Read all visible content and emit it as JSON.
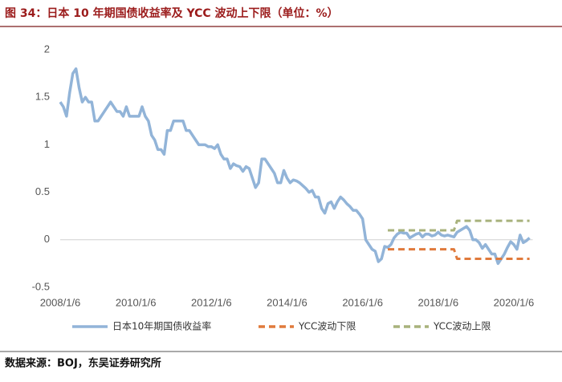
{
  "chart_data": {
    "type": "line",
    "title": "图 34：日本 10 年期国债收益率及 YCC 波动上下限（单位：%）",
    "source": "数据来源：BOJ，东吴证券研究所",
    "x": [
      "2008/1/6",
      "2008/2/6",
      "2008/3/6",
      "2008/4/6",
      "2008/5/6",
      "2008/6/6",
      "2008/7/6",
      "2008/8/6",
      "2008/9/6",
      "2008/10/6",
      "2008/11/6",
      "2008/12/6",
      "2009/1/6",
      "2009/2/6",
      "2009/3/6",
      "2009/4/6",
      "2009/5/6",
      "2009/6/6",
      "2009/7/6",
      "2009/8/6",
      "2009/9/6",
      "2009/10/6",
      "2009/11/6",
      "2009/12/6",
      "2010/1/6",
      "2010/2/6",
      "2010/3/6",
      "2010/4/6",
      "2010/5/6",
      "2010/6/6",
      "2010/7/6",
      "2010/8/6",
      "2010/9/6",
      "2010/10/6",
      "2010/11/6",
      "2010/12/6",
      "2011/1/6",
      "2011/2/6",
      "2011/3/6",
      "2011/4/6",
      "2011/5/6",
      "2011/6/6",
      "2011/7/6",
      "2011/8/6",
      "2011/9/6",
      "2011/10/6",
      "2011/11/6",
      "2011/12/6",
      "2012/1/6",
      "2012/2/6",
      "2012/3/6",
      "2012/4/6",
      "2012/5/6",
      "2012/6/6",
      "2012/7/6",
      "2012/8/6",
      "2012/9/6",
      "2012/10/6",
      "2012/11/6",
      "2012/12/6",
      "2013/1/6",
      "2013/2/6",
      "2013/3/6",
      "2013/4/6",
      "2013/5/6",
      "2013/6/6",
      "2013/7/6",
      "2013/8/6",
      "2013/9/6",
      "2013/10/6",
      "2013/11/6",
      "2013/12/6",
      "2014/1/6",
      "2014/2/6",
      "2014/3/6",
      "2014/4/6",
      "2014/5/6",
      "2014/6/6",
      "2014/7/6",
      "2014/8/6",
      "2014/9/6",
      "2014/10/6",
      "2014/11/6",
      "2014/12/6",
      "2015/1/6",
      "2015/2/6",
      "2015/3/6",
      "2015/4/6",
      "2015/5/6",
      "2015/6/6",
      "2015/7/6",
      "2015/8/6",
      "2015/9/6",
      "2015/10/6",
      "2015/11/6",
      "2015/12/6",
      "2016/1/6",
      "2016/2/6",
      "2016/3/6",
      "2016/4/6",
      "2016/5/6",
      "2016/6/6",
      "2016/7/6",
      "2016/8/6",
      "2016/9/6",
      "2016/10/6",
      "2016/11/6",
      "2016/12/6",
      "2017/1/6",
      "2017/2/6",
      "2017/3/6",
      "2017/4/6",
      "2017/5/6",
      "2017/6/6",
      "2017/7/6",
      "2017/8/6",
      "2017/9/6",
      "2017/10/6",
      "2017/11/6",
      "2017/12/6",
      "2018/1/6",
      "2018/2/6",
      "2018/3/6",
      "2018/4/6",
      "2018/5/6",
      "2018/6/6",
      "2018/7/6",
      "2018/8/6",
      "2018/9/6",
      "2018/10/6",
      "2018/11/6",
      "2018/12/6",
      "2019/1/6",
      "2019/2/6",
      "2019/3/6",
      "2019/4/6",
      "2019/5/6",
      "2019/6/6",
      "2019/7/6",
      "2019/8/6",
      "2019/9/6",
      "2019/10/6",
      "2019/11/6",
      "2019/12/6",
      "2020/1/6",
      "2020/2/6",
      "2020/3/6",
      "2020/4/6",
      "2020/5/6",
      "2020/6/6"
    ],
    "series": [
      {
        "name": "日本10年期国债收益率",
        "color": "#92b4d8",
        "dash": false,
        "values": [
          1.45,
          1.4,
          1.3,
          1.55,
          1.75,
          1.8,
          1.6,
          1.45,
          1.5,
          1.45,
          1.45,
          1.25,
          1.25,
          1.3,
          1.35,
          1.4,
          1.45,
          1.4,
          1.35,
          1.35,
          1.3,
          1.4,
          1.3,
          1.3,
          1.3,
          1.3,
          1.4,
          1.3,
          1.25,
          1.1,
          1.05,
          0.95,
          0.95,
          0.9,
          1.15,
          1.15,
          1.25,
          1.25,
          1.25,
          1.25,
          1.15,
          1.15,
          1.1,
          1.05,
          1.0,
          1.0,
          1.0,
          0.98,
          0.98,
          0.96,
          1.0,
          0.9,
          0.85,
          0.85,
          0.75,
          0.8,
          0.78,
          0.77,
          0.72,
          0.77,
          0.75,
          0.65,
          0.55,
          0.6,
          0.85,
          0.85,
          0.8,
          0.75,
          0.7,
          0.6,
          0.6,
          0.73,
          0.65,
          0.6,
          0.63,
          0.62,
          0.6,
          0.57,
          0.54,
          0.5,
          0.52,
          0.45,
          0.45,
          0.33,
          0.28,
          0.38,
          0.4,
          0.33,
          0.4,
          0.45,
          0.42,
          0.38,
          0.35,
          0.31,
          0.31,
          0.27,
          0.22,
          0.0,
          -0.05,
          -0.1,
          -0.12,
          -0.23,
          -0.2,
          -0.07,
          -0.08,
          -0.05,
          0.02,
          0.06,
          0.08,
          0.07,
          0.07,
          0.02,
          0.04,
          0.06,
          0.07,
          0.03,
          0.06,
          0.06,
          0.04,
          0.05,
          0.08,
          0.05,
          0.04,
          0.05,
          0.04,
          0.03,
          0.08,
          0.1,
          0.12,
          0.14,
          0.1,
          0.0,
          0.0,
          -0.03,
          -0.09,
          -0.05,
          -0.1,
          -0.15,
          -0.15,
          -0.25,
          -0.2,
          -0.15,
          -0.08,
          -0.02,
          -0.05,
          -0.1,
          0.05,
          -0.03,
          -0.01,
          0.02
        ]
      },
      {
        "name": "YCC波动下限",
        "color": "#e07a3c",
        "dash": true,
        "values": [
          null,
          null,
          null,
          null,
          null,
          null,
          null,
          null,
          null,
          null,
          null,
          null,
          null,
          null,
          null,
          null,
          null,
          null,
          null,
          null,
          null,
          null,
          null,
          null,
          null,
          null,
          null,
          null,
          null,
          null,
          null,
          null,
          null,
          null,
          null,
          null,
          null,
          null,
          null,
          null,
          null,
          null,
          null,
          null,
          null,
          null,
          null,
          null,
          null,
          null,
          null,
          null,
          null,
          null,
          null,
          null,
          null,
          null,
          null,
          null,
          null,
          null,
          null,
          null,
          null,
          null,
          null,
          null,
          null,
          null,
          null,
          null,
          null,
          null,
          null,
          null,
          null,
          null,
          null,
          null,
          null,
          null,
          null,
          null,
          null,
          null,
          null,
          null,
          null,
          null,
          null,
          null,
          null,
          null,
          null,
          null,
          null,
          null,
          null,
          null,
          null,
          null,
          null,
          null,
          -0.1,
          -0.1,
          -0.1,
          -0.1,
          -0.1,
          -0.1,
          -0.1,
          -0.1,
          -0.1,
          -0.1,
          -0.1,
          -0.1,
          -0.1,
          -0.1,
          -0.1,
          -0.1,
          -0.1,
          -0.1,
          -0.1,
          -0.1,
          -0.1,
          -0.1,
          -0.2,
          -0.2,
          -0.2,
          -0.2,
          -0.2,
          -0.2,
          -0.2,
          -0.2,
          -0.2,
          -0.2,
          -0.2,
          -0.2,
          -0.2,
          -0.2,
          -0.2,
          -0.2,
          -0.2,
          -0.2,
          -0.2,
          -0.2,
          -0.2,
          -0.2,
          -0.2,
          -0.2
        ]
      },
      {
        "name": "YCC波动上限",
        "color": "#a8b27c",
        "dash": true,
        "values": [
          null,
          null,
          null,
          null,
          null,
          null,
          null,
          null,
          null,
          null,
          null,
          null,
          null,
          null,
          null,
          null,
          null,
          null,
          null,
          null,
          null,
          null,
          null,
          null,
          null,
          null,
          null,
          null,
          null,
          null,
          null,
          null,
          null,
          null,
          null,
          null,
          null,
          null,
          null,
          null,
          null,
          null,
          null,
          null,
          null,
          null,
          null,
          null,
          null,
          null,
          null,
          null,
          null,
          null,
          null,
          null,
          null,
          null,
          null,
          null,
          null,
          null,
          null,
          null,
          null,
          null,
          null,
          null,
          null,
          null,
          null,
          null,
          null,
          null,
          null,
          null,
          null,
          null,
          null,
          null,
          null,
          null,
          null,
          null,
          null,
          null,
          null,
          null,
          null,
          null,
          null,
          null,
          null,
          null,
          null,
          null,
          null,
          null,
          null,
          null,
          null,
          null,
          null,
          null,
          0.1,
          0.1,
          0.1,
          0.1,
          0.1,
          0.1,
          0.1,
          0.1,
          0.1,
          0.1,
          0.1,
          0.1,
          0.1,
          0.1,
          0.1,
          0.1,
          0.1,
          0.1,
          0.1,
          0.1,
          0.1,
          0.1,
          0.2,
          0.2,
          0.2,
          0.2,
          0.2,
          0.2,
          0.2,
          0.2,
          0.2,
          0.2,
          0.2,
          0.2,
          0.2,
          0.2,
          0.2,
          0.2,
          0.2,
          0.2,
          0.2,
          0.2,
          0.2,
          0.2,
          0.2,
          0.2
        ]
      }
    ],
    "xlim": [
      "2008/1/6",
      "2020/7/6"
    ],
    "xticks": [
      "2008/1/6",
      "2010/1/6",
      "2012/1/6",
      "2014/1/6",
      "2016/1/6",
      "2018/1/6",
      "2020/1/6"
    ],
    "ylim": [
      -0.5,
      2
    ],
    "yticks": [
      -0.5,
      0,
      0.5,
      1,
      1.5,
      2
    ],
    "grid": false,
    "legend": "bottom"
  }
}
